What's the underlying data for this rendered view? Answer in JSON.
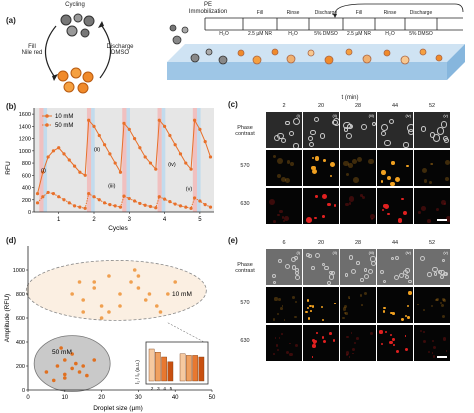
{
  "panel_a": {
    "label": "(a)",
    "cycle_top": "Cycling",
    "cycle_left": "Fill\nNile red",
    "cycle_right": "Discharge\nDMSO",
    "timeline_head": "PE\nImmobilization",
    "steps": [
      {
        "name": "Fill",
        "sub": "2.5 µM NR"
      },
      {
        "name": "Rinse",
        "sub": "H₂O"
      },
      {
        "name": "Discharge",
        "sub": "5% DMSO"
      },
      {
        "name": "Fill",
        "sub": "2.5 µM NR"
      },
      {
        "name": "Rinse",
        "sub": "H₂O"
      },
      {
        "name": "Discharge",
        "sub": "5% DMSO"
      }
    ],
    "first_sub": "H₂O",
    "colors": {
      "droplet_orange": "#f08a2a",
      "droplet_grey": "#8a8a8a",
      "channel": "#bcd8ee"
    }
  },
  "panel_b": {
    "label": "(b)",
    "chart_data": {
      "type": "line",
      "ylabel": "RFU",
      "xlabel": "Cycles",
      "ylim": [
        0,
        1700
      ],
      "yticks": [
        0,
        200,
        400,
        600,
        800,
        1000,
        1200,
        1400,
        1600
      ],
      "xticks": [
        1,
        2,
        3,
        4,
        5
      ],
      "legend": [
        "10 mM",
        "50 mM"
      ],
      "legend_placement": "top-left",
      "series": [
        {
          "name": "10 mM",
          "color": "#e8702a",
          "x": [
            0.4,
            0.55,
            0.7,
            0.85,
            1.0,
            1.15,
            1.3,
            1.45,
            1.6,
            1.75,
            1.85,
            2.0,
            2.15,
            2.3,
            2.45,
            2.6,
            2.75,
            2.85,
            3.0,
            3.15,
            3.3,
            3.45,
            3.6,
            3.75,
            3.85,
            4.0,
            4.15,
            4.3,
            4.45,
            4.6,
            4.75,
            4.85,
            5.0,
            5.15,
            5.3
          ],
          "y": [
            300,
            650,
            900,
            1000,
            1050,
            950,
            850,
            750,
            650,
            600,
            1500,
            1400,
            1250,
            1100,
            950,
            800,
            650,
            1450,
            1350,
            1200,
            1050,
            900,
            800,
            700,
            1500,
            1400,
            1250,
            1100,
            950,
            800,
            700,
            1500,
            1350,
            1150,
            900
          ]
        },
        {
          "name": "50 mM",
          "color": "#e8702a",
          "x": [
            0.4,
            0.55,
            0.7,
            0.85,
            1.0,
            1.15,
            1.3,
            1.45,
            1.6,
            1.75,
            1.85,
            2.0,
            2.15,
            2.3,
            2.45,
            2.6,
            2.75,
            2.85,
            3.0,
            3.15,
            3.3,
            3.45,
            3.6,
            3.75,
            3.85,
            4.0,
            4.15,
            4.3,
            4.45,
            4.6,
            4.75,
            4.85,
            5.0,
            5.15,
            5.3
          ],
          "y": [
            150,
            250,
            320,
            300,
            250,
            200,
            150,
            100,
            80,
            60,
            300,
            250,
            200,
            150,
            120,
            100,
            80,
            260,
            220,
            180,
            140,
            110,
            90,
            70,
            250,
            210,
            170,
            130,
            100,
            80,
            60,
            230,
            180,
            120,
            80
          ]
        }
      ],
      "annotations": [
        "(i)",
        "(ii)",
        "(iii)",
        "(iv)",
        "(v)"
      ]
    }
  },
  "panel_c": {
    "label": "(c)",
    "time_title": "t (min)",
    "times": [
      "2",
      "20",
      "28",
      "44",
      "52"
    ],
    "romans": [
      "(i)",
      "(ii)",
      "(iii)",
      "(iv)",
      "(v)"
    ],
    "rows": [
      "Phase\ncontrast",
      "570",
      "630"
    ]
  },
  "panel_d": {
    "label": "(d)",
    "chart_data": {
      "type": "scatter",
      "xlabel": "Droplet size (µm)",
      "ylabel": "Amplitude (RFU)",
      "xlim": [
        0,
        50
      ],
      "ylim": [
        0,
        1200
      ],
      "xticks": [
        0,
        10,
        20,
        30,
        40,
        50
      ],
      "yticks": [
        0,
        200,
        400,
        600,
        800,
        1000
      ],
      "group_labels": [
        "10 mM",
        "50 mM"
      ],
      "series": [
        {
          "name": "10 mM",
          "color": "#f0a050",
          "x": [
            12,
            14,
            15,
            18,
            20,
            22,
            25,
            28,
            29,
            30,
            32,
            35,
            38,
            40,
            20,
            22,
            15,
            18,
            25,
            30,
            33,
            36
          ],
          "y": [
            800,
            900,
            750,
            850,
            700,
            950,
            800,
            900,
            1000,
            850,
            750,
            700,
            800,
            900,
            600,
            650,
            650,
            900,
            700,
            950,
            800,
            650
          ]
        },
        {
          "name": "50 mM",
          "color": "#e07020",
          "x": [
            5,
            8,
            10,
            10,
            12,
            15,
            9,
            14,
            18,
            12,
            7,
            10,
            13,
            16
          ],
          "y": [
            150,
            200,
            100,
            250,
            300,
            200,
            350,
            150,
            250,
            180,
            80,
            130,
            220,
            120
          ]
        }
      ],
      "inset": {
        "ylabel": "I₁ / I₀ (a.u.)",
        "xticks": [
          "2",
          "3",
          "4",
          "5"
        ],
        "bars_left": [
          1.0,
          0.9,
          0.75,
          0.6
        ],
        "bars_right": [
          0.85,
          0.8,
          0.8,
          0.75
        ]
      }
    }
  },
  "panel_e": {
    "label": "(e)",
    "times": [
      "6",
      "20",
      "28",
      "44",
      "52"
    ],
    "romans": [
      "(i)",
      "(ii)",
      "(iii)",
      "(iv)",
      "(v)"
    ],
    "rows": [
      "Phase\ncontrast",
      "570",
      "630"
    ]
  }
}
